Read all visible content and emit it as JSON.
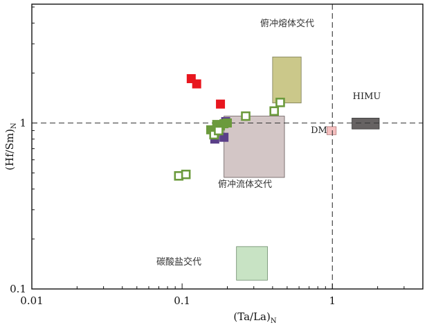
{
  "chart_data": {
    "type": "scatter",
    "xscale": "log",
    "yscale": "log",
    "xlim": [
      0.01,
      4
    ],
    "ylim": [
      0.1,
      5.2
    ],
    "xlabel": "(Ta/La)",
    "xlabel_sub": "N",
    "ylabel": "(Hf/Sm)",
    "ylabel_sub": "N",
    "x_ticks": [
      {
        "value": 0.01,
        "label": "0.01"
      },
      {
        "value": 0.1,
        "label": "0.1"
      },
      {
        "value": 1,
        "label": "1"
      }
    ],
    "y_ticks": [
      {
        "value": 0.1,
        "label": "0.1"
      },
      {
        "value": 1,
        "label": "1"
      }
    ],
    "reference_lines": {
      "x": 1,
      "y": 1,
      "style": "dashed"
    },
    "fields": [
      {
        "label": "俯冲熔体交代",
        "x": [
          0.4,
          0.62
        ],
        "y": [
          1.32,
          2.5
        ],
        "color": "#cbc88a",
        "stroke": "#7a7a55"
      },
      {
        "label": "俯冲流体交代",
        "x": [
          0.19,
          0.48
        ],
        "y": [
          0.47,
          1.1
        ],
        "color": "#d3c6c6",
        "stroke": "#665a5a"
      },
      {
        "label": "碳酸盐交代",
        "x": [
          0.23,
          0.37
        ],
        "y": [
          0.113,
          0.18
        ],
        "color": "#c8e3c4",
        "stroke": "#6a8a68"
      },
      {
        "label": "DM",
        "x": [
          0.92,
          1.06
        ],
        "y": [
          0.85,
          0.95
        ],
        "color": "#f5c0c0",
        "stroke": "#b47a7a"
      },
      {
        "label": "HIMU",
        "x": [
          1.35,
          2.05
        ],
        "y": [
          0.92,
          1.07
        ],
        "color": "#666262",
        "stroke": "#333333"
      }
    ],
    "series": [
      {
        "marker": "filled-square",
        "color": "#e8161e",
        "points": [
          [
            0.115,
            1.85
          ],
          [
            0.125,
            1.72
          ],
          [
            0.18,
            1.3
          ]
        ]
      },
      {
        "marker": "filled-square",
        "color": "#5a3f88",
        "points": [
          [
            0.165,
            0.8
          ],
          [
            0.19,
            0.82
          ],
          [
            0.195,
            1.02
          ],
          [
            0.175,
            0.9
          ]
        ]
      },
      {
        "marker": "filled-square",
        "color": "#6b9a3c",
        "points": [
          [
            0.155,
            0.91
          ],
          [
            0.165,
            0.88
          ],
          [
            0.17,
            0.98
          ],
          [
            0.18,
            0.96
          ],
          [
            0.19,
            0.99
          ],
          [
            0.2,
            1.0
          ]
        ]
      },
      {
        "marker": "open-square",
        "color": "#6b9a3c",
        "points": [
          [
            0.095,
            0.48
          ],
          [
            0.106,
            0.49
          ],
          [
            0.163,
            0.85
          ],
          [
            0.175,
            0.9
          ],
          [
            0.265,
            1.1
          ],
          [
            0.41,
            1.18
          ],
          [
            0.45,
            1.33
          ]
        ]
      }
    ]
  }
}
